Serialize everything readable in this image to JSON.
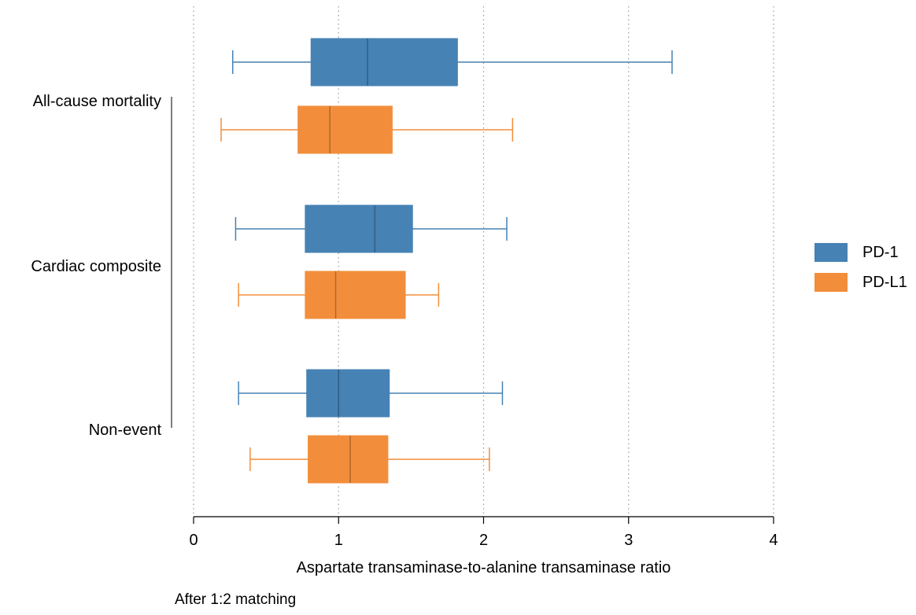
{
  "chart_data": {
    "type": "boxplot",
    "orientation": "horizontal",
    "xlabel": "Aspartate transaminase-to-alanine transaminase ratio",
    "xlim": [
      0,
      4
    ],
    "xticks": [
      0,
      1,
      2,
      3,
      4
    ],
    "grid": "vertical dotted at x ticks",
    "legend_position": "right",
    "caption": "After 1:2 matching",
    "groups": [
      "All-cause mortality",
      "Cardiac composite",
      "Non-event"
    ],
    "series": [
      {
        "name": "PD-1",
        "color": "#4682B4",
        "boxes": [
          {
            "group": "All-cause mortality",
            "min": 0.27,
            "q1": 0.81,
            "median": 1.2,
            "q3": 1.82,
            "max": 3.3
          },
          {
            "group": "Cardiac composite",
            "min": 0.29,
            "q1": 0.77,
            "median": 1.25,
            "q3": 1.51,
            "max": 2.16
          },
          {
            "group": "Non-event",
            "min": 0.31,
            "q1": 0.78,
            "median": 1.0,
            "q3": 1.35,
            "max": 2.13
          }
        ]
      },
      {
        "name": "PD-L1",
        "color": "#F28E3B",
        "boxes": [
          {
            "group": "All-cause mortality",
            "min": 0.19,
            "q1": 0.72,
            "median": 0.94,
            "q3": 1.37,
            "max": 2.2
          },
          {
            "group": "Cardiac composite",
            "min": 0.31,
            "q1": 0.77,
            "median": 0.98,
            "q3": 1.46,
            "max": 1.69
          },
          {
            "group": "Non-event",
            "min": 0.39,
            "q1": 0.79,
            "median": 1.08,
            "q3": 1.34,
            "max": 2.04
          }
        ]
      }
    ]
  }
}
